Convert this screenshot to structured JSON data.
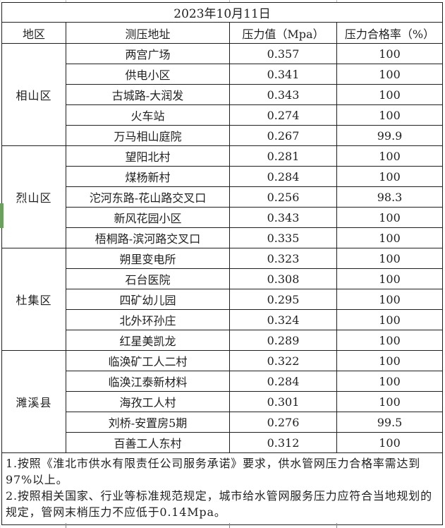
{
  "title": "2023年10月11日",
  "table": {
    "headers": [
      "地区",
      "测压地址",
      "压力值（Mpa）",
      "压力合格率（%）"
    ],
    "sections": [
      {
        "district": "相山区",
        "rows": [
          [
            "两宫广场",
            "0.357",
            "100"
          ],
          [
            "供电小区",
            "0.341",
            "100"
          ],
          [
            "古城路-大润发",
            "0.343",
            "100"
          ],
          [
            "火车站",
            "0.274",
            "100"
          ],
          [
            "万马相山庭院",
            "0.267",
            "99.9"
          ]
        ]
      },
      {
        "district": "烈山区",
        "rows": [
          [
            "望阳北村",
            "0.281",
            "100"
          ],
          [
            "煤杨新村",
            "0.284",
            "100"
          ],
          [
            "沱河东路-花山路交叉口",
            "0.256",
            "98.3"
          ],
          [
            "新风花园小区",
            "0.343",
            "100"
          ],
          [
            "梧桐路-滨河路交叉口",
            "0.335",
            "100"
          ]
        ]
      },
      {
        "district": "杜集区",
        "rows": [
          [
            "朔里变电所",
            "0.323",
            "100"
          ],
          [
            "石台医院",
            "0.308",
            "100"
          ],
          [
            "四矿幼儿园",
            "0.295",
            "100"
          ],
          [
            "北外环孙庄",
            "0.324",
            "100"
          ],
          [
            "红星美凯龙",
            "0.289",
            "100"
          ]
        ]
      },
      {
        "district": "濉溪县",
        "rows": [
          [
            "临涣矿工人二村",
            "0.322",
            "100"
          ],
          [
            "临涣江泰新材料",
            "0.284",
            "100"
          ],
          [
            "海孜工人村",
            "0.301",
            "100"
          ],
          [
            "刘桥-安置房5期",
            "0.276",
            "99.5"
          ],
          [
            "百善工人东村",
            "0.312",
            "100"
          ]
        ]
      }
    ]
  },
  "notes": [
    "1.按照《淮北市供水有限责任公司服务承诺》要求，供水管网压力合格率需达到97%以上。",
    "2.按照相关国家、行业等标准规范规定，城市给水管网服务压力应符合当地规划的规定，管网末梢压力不应低于0.14Mpa。"
  ],
  "colors": {
    "border": "#1f1f1f",
    "text": "#1f1f1f",
    "background": "#ffffff",
    "marker_green": "#6ba05e"
  }
}
